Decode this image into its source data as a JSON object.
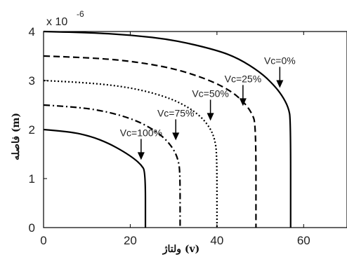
{
  "chart_data": {
    "type": "line",
    "xlabel": "ولتاژ (v)",
    "ylabel": "فاصله (m)",
    "y_exponent_label": "x 10",
    "y_exponent_power": "-6",
    "xlim": [
      0,
      70
    ],
    "ylim": [
      0,
      4
    ],
    "x_ticks": [
      0,
      20,
      40,
      60
    ],
    "y_ticks": [
      0,
      1,
      2,
      3,
      4
    ],
    "x_tick_labels": [
      "0",
      "20",
      "40",
      "60"
    ],
    "y_tick_labels": [
      "0",
      "1",
      "2",
      "3",
      "4"
    ],
    "grid": false,
    "series": [
      {
        "name": "Vc=0%",
        "style": "solid",
        "y0": 4.0,
        "xmax": 57.0,
        "points": [
          [
            0,
            4.0
          ],
          [
            10,
            3.98
          ],
          [
            20,
            3.93
          ],
          [
            30,
            3.83
          ],
          [
            40,
            3.62
          ],
          [
            45,
            3.45
          ],
          [
            50,
            3.17
          ],
          [
            53,
            2.92
          ],
          [
            55,
            2.7
          ],
          [
            56.5,
            2.45
          ],
          [
            57,
            2.2
          ],
          [
            57,
            0
          ]
        ]
      },
      {
        "name": "Vc=25%",
        "style": "dashed",
        "y0": 3.5,
        "xmax": 49.0,
        "points": [
          [
            0,
            3.5
          ],
          [
            10,
            3.47
          ],
          [
            20,
            3.4
          ],
          [
            30,
            3.25
          ],
          [
            38,
            3.02
          ],
          [
            43,
            2.8
          ],
          [
            46,
            2.58
          ],
          [
            48,
            2.35
          ],
          [
            49,
            2.1
          ],
          [
            49,
            0
          ]
        ]
      },
      {
        "name": "Vc=50%",
        "style": "dotted",
        "y0": 3.0,
        "xmax": 40.0,
        "points": [
          [
            0,
            3.0
          ],
          [
            10,
            2.96
          ],
          [
            20,
            2.86
          ],
          [
            28,
            2.68
          ],
          [
            33,
            2.48
          ],
          [
            36.5,
            2.25
          ],
          [
            38.5,
            2.02
          ],
          [
            39.5,
            1.8
          ],
          [
            40,
            1.5
          ],
          [
            40,
            0
          ]
        ]
      },
      {
        "name": "Vc=75%",
        "style": "dashdot",
        "y0": 2.5,
        "xmax": 31.5,
        "points": [
          [
            0,
            2.5
          ],
          [
            8,
            2.46
          ],
          [
            15,
            2.36
          ],
          [
            21,
            2.2
          ],
          [
            25,
            2.02
          ],
          [
            28,
            1.82
          ],
          [
            30,
            1.6
          ],
          [
            31,
            1.4
          ],
          [
            31.5,
            1.15
          ],
          [
            31.5,
            0
          ]
        ]
      },
      {
        "name": "Vc=100%",
        "style": "solid",
        "y0": 2.0,
        "xmax": 23.5,
        "points": [
          [
            0,
            2.0
          ],
          [
            6,
            1.96
          ],
          [
            11,
            1.86
          ],
          [
            15,
            1.72
          ],
          [
            18.5,
            1.55
          ],
          [
            21,
            1.4
          ],
          [
            22.5,
            1.28
          ],
          [
            23.5,
            1.15
          ],
          [
            23.5,
            0
          ]
        ]
      }
    ],
    "annotations": [
      {
        "text": "Vc=0%",
        "arrow_x": 54.5,
        "arrow_y": 2.85
      },
      {
        "text": "Vc=25%",
        "arrow_x": 46.0,
        "arrow_y": 2.48
      },
      {
        "text": "Vc=50%",
        "arrow_x": 38.5,
        "arrow_y": 2.18
      },
      {
        "text": "Vc=75%",
        "arrow_x": 30.5,
        "arrow_y": 1.78
      },
      {
        "text": "Vc=100%",
        "arrow_x": 22.5,
        "arrow_y": 1.38
      }
    ]
  }
}
